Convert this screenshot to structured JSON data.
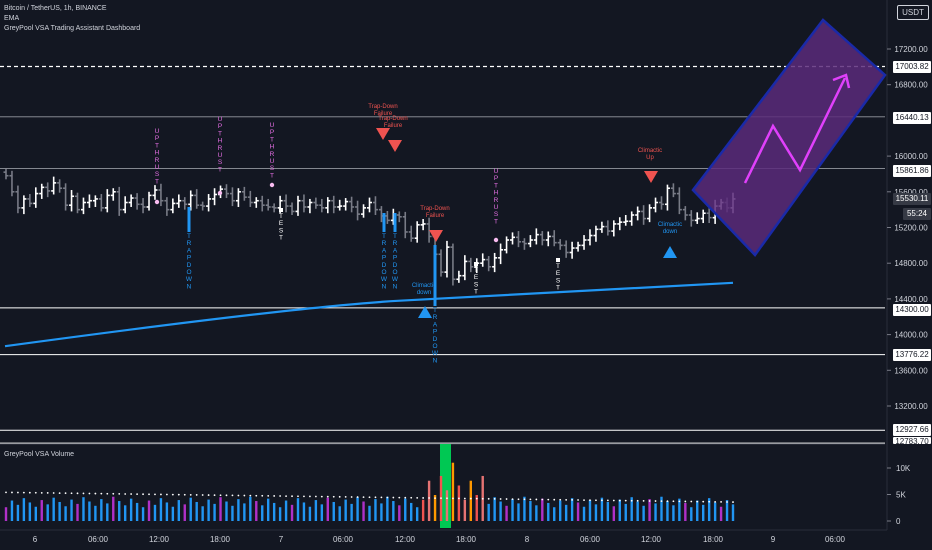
{
  "header": {
    "symbol_line": "Bitcoin / TetherUS, 1h, BINANCE",
    "indicator_1": "EMA",
    "indicator_2": "GreyPool VSA Trading Assistant Dashboard",
    "volume_title": "GreyPool VSA Volume",
    "currency": "USDT"
  },
  "colors": {
    "background": "#131722",
    "bull_bar": "#ffffff",
    "bear_bar": "#787b86",
    "ema": "#2196f3",
    "signal_pink": "#e46ee4",
    "signal_red": "#ef5350",
    "signal_blue": "#2196f3",
    "projection_fill": "#5b2a7a",
    "projection_edge": "#1a2aa8",
    "projection_arrow": "#e040fb",
    "volume_green": "#00c853"
  },
  "price_labels": [
    {
      "value": "17003.82",
      "style": "white"
    },
    {
      "value": "16440.13",
      "style": "white"
    },
    {
      "value": "15861.86",
      "style": "white"
    },
    {
      "value": "15530.11",
      "style": "dark"
    },
    {
      "value": "55:24",
      "style": "countdown"
    },
    {
      "value": "14300.00",
      "style": "white"
    },
    {
      "value": "13776.22",
      "style": "white"
    },
    {
      "value": "12927.66",
      "style": "white"
    },
    {
      "value": "12783.70",
      "style": "white"
    }
  ],
  "chart_data": [
    {
      "type": "ohlc",
      "title": "Bitcoin / TetherUS, 1h, BINANCE",
      "y_ticks": [
        17200,
        16800,
        16000,
        15600,
        15200,
        14800,
        14400,
        14000,
        13600,
        13200
      ],
      "y_tick_labels": [
        "17200.00",
        "16800.00",
        "16000.00",
        "15600.00",
        "15200.00",
        "14800.00",
        "14400.00",
        "14000.00",
        "13600.00",
        "13200.00"
      ],
      "x_tick_labels": [
        "6",
        "06:00",
        "12:00",
        "18:00",
        "7",
        "06:00",
        "12:00",
        "18:00",
        "8",
        "06:00",
        "12:00",
        "18:00",
        "9",
        "06:00"
      ],
      "grid": false,
      "horizontal_levels": [
        {
          "value": 17003.82,
          "style": "dashed"
        },
        {
          "value": 16440.13,
          "style": "solid-gray"
        },
        {
          "value": 15861.86,
          "style": "solid-gray"
        },
        {
          "value": 14300.0,
          "style": "solid-white"
        },
        {
          "value": 13776.22,
          "style": "solid-white"
        },
        {
          "value": 12927.66,
          "style": "solid-white"
        },
        {
          "value": 12783.7,
          "style": "solid-white"
        }
      ],
      "ema": {
        "name": "EMA",
        "start": 13870,
        "end": 14580
      },
      "annotations": [
        {
          "text": "UPTHRUST",
          "color": "pink",
          "direction": "vertical"
        },
        {
          "text": "UPTHRUST",
          "color": "pink",
          "direction": "vertical"
        },
        {
          "text": "UPTHRUST",
          "color": "pink",
          "direction": "vertical"
        },
        {
          "text": "UPTHRUST",
          "color": "pink",
          "direction": "vertical"
        },
        {
          "text": "TRAPDOWN",
          "color": "blue",
          "direction": "vertical"
        },
        {
          "text": "TRAPDOWN",
          "color": "blue",
          "direction": "vertical"
        },
        {
          "text": "TRAPDOWN",
          "color": "blue",
          "direction": "vertical"
        },
        {
          "text": "TRAPDOWN",
          "color": "blue",
          "direction": "vertical"
        },
        {
          "text": "TEST",
          "color": "white",
          "direction": "vertical"
        },
        {
          "text": "TEST",
          "color": "white",
          "direction": "vertical"
        },
        {
          "text": "TEST",
          "color": "white",
          "direction": "vertical"
        },
        {
          "text": "Trap-Down Failure",
          "color": "red",
          "marker": "triangle-down"
        },
        {
          "text": "Trap-Down Failure",
          "color": "red",
          "marker": "triangle-down"
        },
        {
          "text": "Trap-Down Failure",
          "color": "red",
          "marker": "triangle-down"
        },
        {
          "text": "Climactic Up",
          "color": "red",
          "marker": "triangle-down"
        },
        {
          "text": "Climactic down",
          "color": "blue",
          "marker": "triangle-up"
        },
        {
          "text": "Climactic down",
          "color": "blue",
          "marker": "triangle-up"
        }
      ]
    },
    {
      "type": "bar",
      "title": "GreyPool VSA Volume",
      "y_ticks": [
        0,
        5000,
        10000
      ],
      "y_tick_labels": [
        "0",
        "5K",
        "10K"
      ],
      "ylim": [
        0,
        12000
      ]
    }
  ]
}
